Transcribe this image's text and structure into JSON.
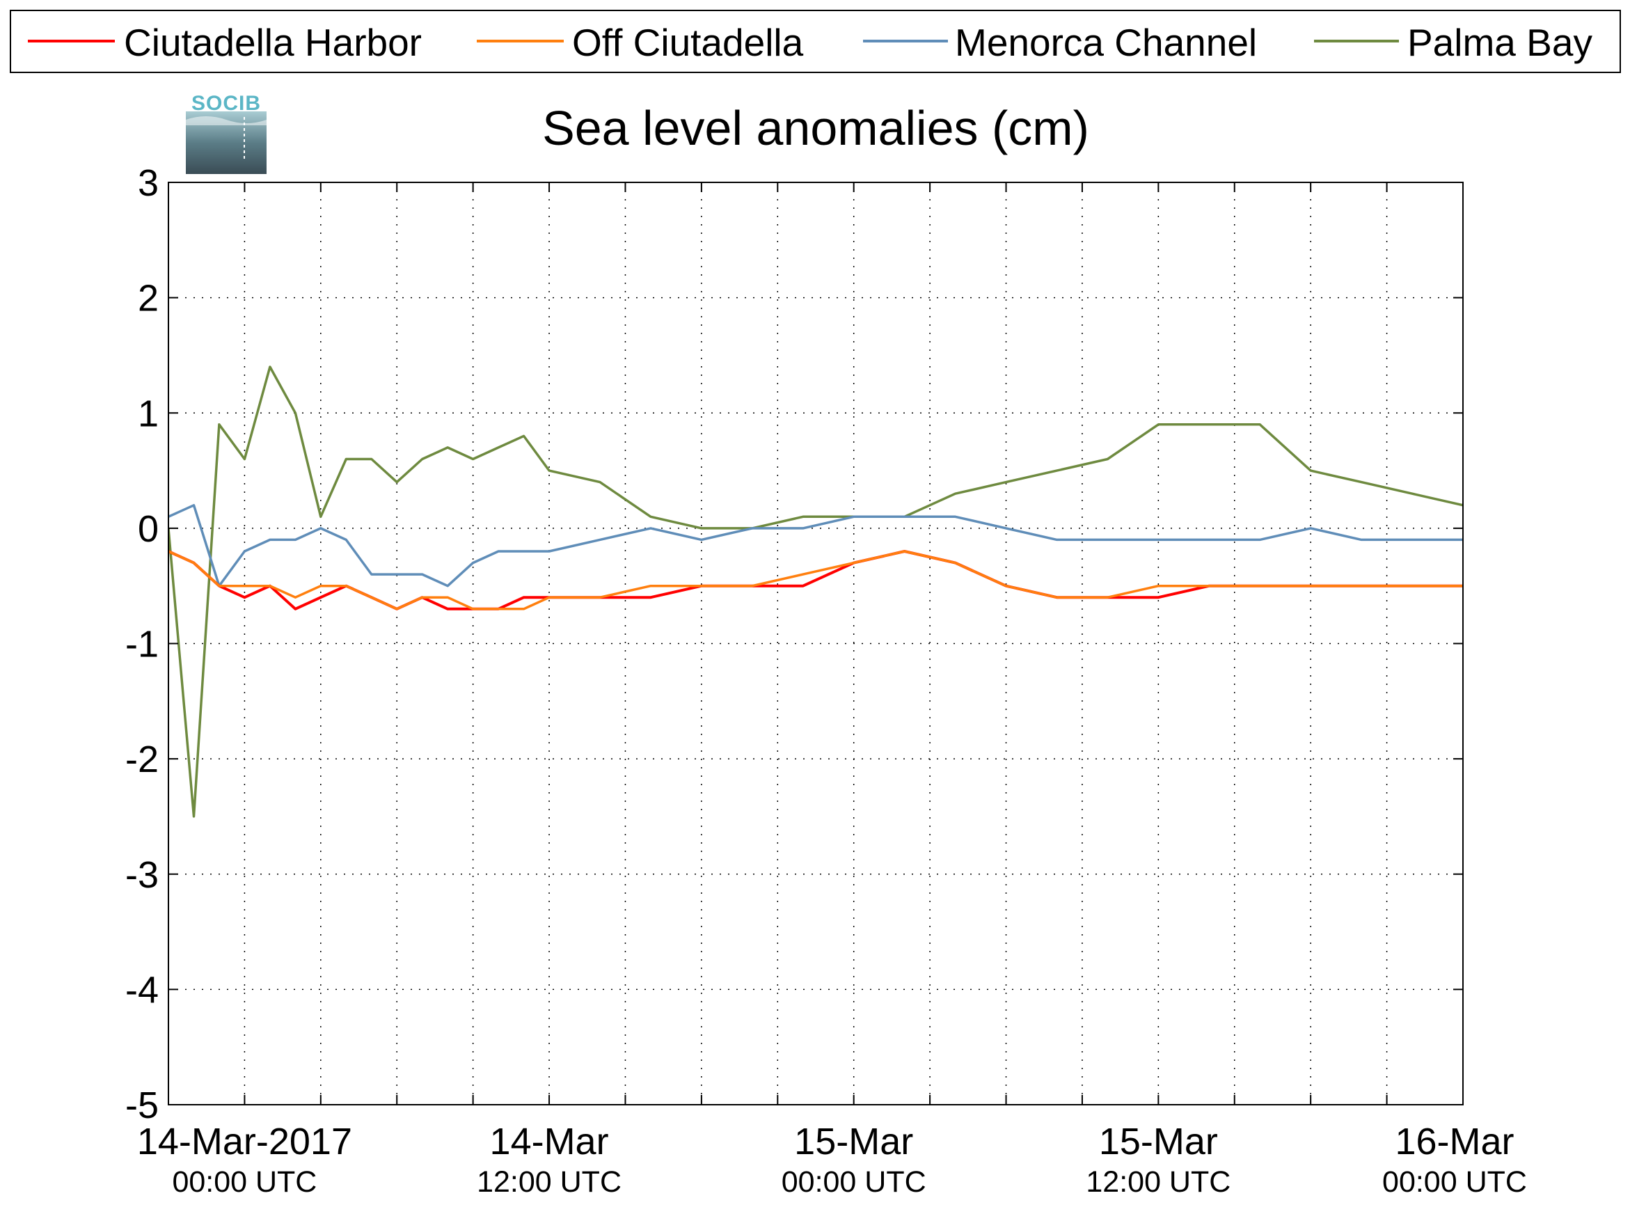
{
  "logo": {
    "text": "SOCIB"
  },
  "colors": {
    "ciutadella_harbor": "#ff0000",
    "off_ciutadella": "#ff7f0e",
    "menorca_channel": "#5f8db8",
    "palma_bay": "#6e8a3f",
    "grid": "#000000"
  },
  "chart_data": {
    "type": "line",
    "title": "Sea level anomalies (cm)",
    "xlabel": "",
    "ylabel": "",
    "xlim": [
      "2017-03-13T21:00Z",
      "2017-03-16T00:00Z"
    ],
    "ylim": [
      -5,
      3
    ],
    "y_ticks": [
      "3",
      "2",
      "1",
      "0",
      "-1",
      "-2",
      "-3",
      "-4",
      "-5"
    ],
    "x_tick_labels": [
      {
        "x": "2017-03-14T00:00Z",
        "date": "14-Mar-2017",
        "time": "00:00 UTC"
      },
      {
        "x": "2017-03-14T12:00Z",
        "date": "14-Mar",
        "time": "12:00 UTC"
      },
      {
        "x": "2017-03-15T00:00Z",
        "date": "15-Mar",
        "time": "00:00 UTC"
      },
      {
        "x": "2017-03-15T12:00Z",
        "date": "15-Mar",
        "time": "12:00 UTC"
      },
      {
        "x": "2017-03-16T00:00Z",
        "date": "16-Mar",
        "time": "00:00 UTC"
      }
    ],
    "grid": true,
    "legend_position": "top",
    "series": [
      {
        "name": "Ciutadella Harbor",
        "color": "#ff0000",
        "x": [
          "2017-03-13T21:00Z",
          "2017-03-13T22:00Z",
          "2017-03-13T23:00Z",
          "2017-03-14T00:00Z",
          "2017-03-14T01:00Z",
          "2017-03-14T02:00Z",
          "2017-03-14T03:00Z",
          "2017-03-14T04:00Z",
          "2017-03-14T05:00Z",
          "2017-03-14T06:00Z",
          "2017-03-14T07:00Z",
          "2017-03-14T08:00Z",
          "2017-03-14T09:00Z",
          "2017-03-14T10:00Z",
          "2017-03-14T11:00Z",
          "2017-03-14T12:00Z",
          "2017-03-14T14:00Z",
          "2017-03-14T16:00Z",
          "2017-03-14T18:00Z",
          "2017-03-14T20:00Z",
          "2017-03-14T22:00Z",
          "2017-03-15T00:00Z",
          "2017-03-15T02:00Z",
          "2017-03-15T04:00Z",
          "2017-03-15T06:00Z",
          "2017-03-15T08:00Z",
          "2017-03-15T10:00Z",
          "2017-03-15T12:00Z",
          "2017-03-15T14:00Z",
          "2017-03-15T16:00Z",
          "2017-03-15T18:00Z",
          "2017-03-15T20:00Z",
          "2017-03-15T22:00Z",
          "2017-03-16T00:00Z"
        ],
        "y": [
          -0.2,
          -0.3,
          -0.5,
          -0.6,
          -0.5,
          -0.7,
          -0.6,
          -0.5,
          -0.6,
          -0.7,
          -0.6,
          -0.7,
          -0.7,
          -0.7,
          -0.6,
          -0.6,
          -0.6,
          -0.6,
          -0.5,
          -0.5,
          -0.5,
          -0.3,
          -0.2,
          -0.3,
          -0.5,
          -0.6,
          -0.6,
          -0.6,
          -0.5,
          -0.5,
          -0.5,
          -0.5,
          -0.5,
          -0.5
        ]
      },
      {
        "name": "Off Ciutadella",
        "color": "#ff7f0e",
        "x": [
          "2017-03-13T21:00Z",
          "2017-03-13T22:00Z",
          "2017-03-13T23:00Z",
          "2017-03-14T00:00Z",
          "2017-03-14T01:00Z",
          "2017-03-14T02:00Z",
          "2017-03-14T03:00Z",
          "2017-03-14T04:00Z",
          "2017-03-14T05:00Z",
          "2017-03-14T06:00Z",
          "2017-03-14T07:00Z",
          "2017-03-14T08:00Z",
          "2017-03-14T09:00Z",
          "2017-03-14T10:00Z",
          "2017-03-14T11:00Z",
          "2017-03-14T12:00Z",
          "2017-03-14T14:00Z",
          "2017-03-14T16:00Z",
          "2017-03-14T18:00Z",
          "2017-03-14T20:00Z",
          "2017-03-14T22:00Z",
          "2017-03-15T00:00Z",
          "2017-03-15T02:00Z",
          "2017-03-15T04:00Z",
          "2017-03-15T06:00Z",
          "2017-03-15T08:00Z",
          "2017-03-15T10:00Z",
          "2017-03-15T12:00Z",
          "2017-03-15T14:00Z",
          "2017-03-15T16:00Z",
          "2017-03-15T18:00Z",
          "2017-03-15T20:00Z",
          "2017-03-15T22:00Z",
          "2017-03-16T00:00Z"
        ],
        "y": [
          -0.2,
          -0.3,
          -0.5,
          -0.5,
          -0.5,
          -0.6,
          -0.5,
          -0.5,
          -0.6,
          -0.7,
          -0.6,
          -0.6,
          -0.7,
          -0.7,
          -0.7,
          -0.6,
          -0.6,
          -0.5,
          -0.5,
          -0.5,
          -0.4,
          -0.3,
          -0.2,
          -0.3,
          -0.5,
          -0.6,
          -0.6,
          -0.5,
          -0.5,
          -0.5,
          -0.5,
          -0.5,
          -0.5,
          -0.5
        ]
      },
      {
        "name": "Menorca Channel",
        "color": "#5f8db8",
        "x": [
          "2017-03-13T21:00Z",
          "2017-03-13T22:00Z",
          "2017-03-13T23:00Z",
          "2017-03-14T00:00Z",
          "2017-03-14T01:00Z",
          "2017-03-14T02:00Z",
          "2017-03-14T03:00Z",
          "2017-03-14T04:00Z",
          "2017-03-14T05:00Z",
          "2017-03-14T06:00Z",
          "2017-03-14T07:00Z",
          "2017-03-14T08:00Z",
          "2017-03-14T09:00Z",
          "2017-03-14T10:00Z",
          "2017-03-14T11:00Z",
          "2017-03-14T12:00Z",
          "2017-03-14T14:00Z",
          "2017-03-14T16:00Z",
          "2017-03-14T18:00Z",
          "2017-03-14T20:00Z",
          "2017-03-14T22:00Z",
          "2017-03-15T00:00Z",
          "2017-03-15T02:00Z",
          "2017-03-15T04:00Z",
          "2017-03-15T06:00Z",
          "2017-03-15T08:00Z",
          "2017-03-15T10:00Z",
          "2017-03-15T12:00Z",
          "2017-03-15T14:00Z",
          "2017-03-15T16:00Z",
          "2017-03-15T18:00Z",
          "2017-03-15T20:00Z",
          "2017-03-15T22:00Z",
          "2017-03-16T00:00Z"
        ],
        "y": [
          0.1,
          0.2,
          -0.5,
          -0.2,
          -0.1,
          -0.1,
          0.0,
          -0.1,
          -0.4,
          -0.4,
          -0.4,
          -0.5,
          -0.3,
          -0.2,
          -0.2,
          -0.2,
          -0.1,
          0.0,
          -0.1,
          0.0,
          0.0,
          0.1,
          0.1,
          0.1,
          0.0,
          -0.1,
          -0.1,
          -0.1,
          -0.1,
          -0.1,
          0.0,
          -0.1,
          -0.1,
          -0.1
        ]
      },
      {
        "name": "Palma Bay",
        "color": "#6e8a3f",
        "x": [
          "2017-03-13T21:00Z",
          "2017-03-13T22:00Z",
          "2017-03-13T23:00Z",
          "2017-03-14T00:00Z",
          "2017-03-14T01:00Z",
          "2017-03-14T02:00Z",
          "2017-03-14T03:00Z",
          "2017-03-14T04:00Z",
          "2017-03-14T05:00Z",
          "2017-03-14T06:00Z",
          "2017-03-14T07:00Z",
          "2017-03-14T08:00Z",
          "2017-03-14T09:00Z",
          "2017-03-14T10:00Z",
          "2017-03-14T11:00Z",
          "2017-03-14T12:00Z",
          "2017-03-14T14:00Z",
          "2017-03-14T16:00Z",
          "2017-03-14T18:00Z",
          "2017-03-14T20:00Z",
          "2017-03-14T22:00Z",
          "2017-03-15T00:00Z",
          "2017-03-15T02:00Z",
          "2017-03-15T04:00Z",
          "2017-03-15T06:00Z",
          "2017-03-15T08:00Z",
          "2017-03-15T10:00Z",
          "2017-03-15T12:00Z",
          "2017-03-15T14:00Z",
          "2017-03-15T16:00Z",
          "2017-03-15T18:00Z",
          "2017-03-15T20:00Z",
          "2017-03-15T22:00Z",
          "2017-03-16T00:00Z"
        ],
        "y": [
          0.0,
          -2.5,
          0.9,
          0.6,
          1.4,
          1.0,
          0.1,
          0.6,
          0.6,
          0.4,
          0.6,
          0.7,
          0.6,
          0.7,
          0.8,
          0.5,
          0.4,
          0.1,
          0.0,
          0.0,
          0.1,
          0.1,
          0.1,
          0.3,
          0.4,
          0.5,
          0.6,
          0.9,
          0.9,
          0.9,
          0.5,
          0.4,
          0.3,
          0.2
        ]
      }
    ]
  }
}
